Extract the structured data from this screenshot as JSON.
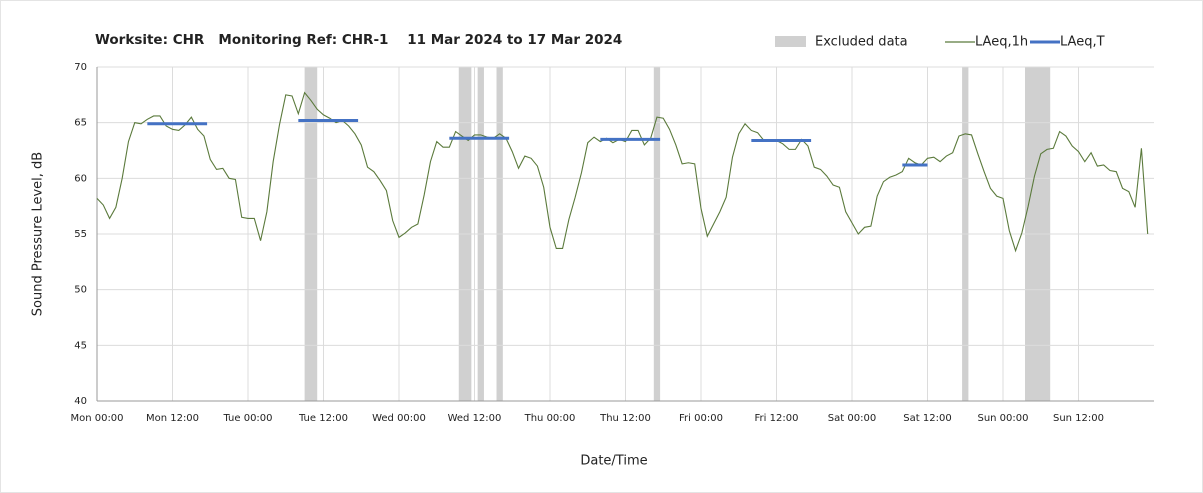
{
  "chart_data": {
    "type": "line",
    "title": "Worksite: CHR   Monitoring Ref: CHR-1    11 Mar 2024 to 17 Mar 2024",
    "x_label": "Date/Time",
    "y_label": "Sound Pressure Level, dB",
    "xlim": [
      0,
      168
    ],
    "ylim": [
      40,
      70
    ],
    "yticks": [
      40,
      45,
      50,
      55,
      60,
      65,
      70
    ],
    "xticks": [
      {
        "value": 0,
        "label": "Mon 00:00"
      },
      {
        "value": 12,
        "label": "Mon 12:00"
      },
      {
        "value": 24,
        "label": "Tue 00:00"
      },
      {
        "value": 36,
        "label": "Tue 12:00"
      },
      {
        "value": 48,
        "label": "Wed 00:00"
      },
      {
        "value": 60,
        "label": "Wed 12:00"
      },
      {
        "value": 72,
        "label": "Thu 00:00"
      },
      {
        "value": 84,
        "label": "Thu 12:00"
      },
      {
        "value": 96,
        "label": "Fri 00:00"
      },
      {
        "value": 108,
        "label": "Fri 12:00"
      },
      {
        "value": 120,
        "label": "Sat 00:00"
      },
      {
        "value": 132,
        "label": "Sat 12:00"
      },
      {
        "value": 144,
        "label": "Sun 00:00"
      },
      {
        "value": 156,
        "label": "Sun 12:00"
      }
    ],
    "grid": true,
    "excluded": {
      "name": "Excluded data",
      "color": "#d0d0d0",
      "ranges": [
        [
          33,
          35
        ],
        [
          57.5,
          59.5
        ],
        [
          60.5,
          61.5
        ],
        [
          63.5,
          64.5
        ],
        [
          88.5,
          89.5
        ],
        [
          137.5,
          138.5
        ],
        [
          147.5,
          151.5
        ]
      ]
    },
    "series": [
      {
        "name": "LAeq,1h",
        "color": "#5b7a3c",
        "x": [
          0,
          1,
          2,
          3,
          4,
          5,
          6,
          7,
          8,
          9,
          10,
          11,
          12,
          13,
          14,
          15,
          16,
          17,
          18,
          19,
          20,
          21,
          22,
          23,
          24,
          25,
          26,
          27,
          28,
          29,
          30,
          31,
          32,
          33,
          34,
          35,
          36,
          37,
          38,
          39,
          40,
          41,
          42,
          43,
          44,
          45,
          46,
          47,
          48,
          49,
          50,
          51,
          52,
          53,
          54,
          55,
          56,
          57,
          58,
          59,
          60,
          61,
          62,
          63,
          64,
          65,
          66,
          67,
          68,
          69,
          70,
          71,
          72,
          73,
          74,
          75,
          76,
          77,
          78,
          79,
          80,
          81,
          82,
          83,
          84,
          85,
          86,
          87,
          88,
          89,
          90,
          91,
          92,
          93,
          94,
          95,
          96,
          97,
          98,
          99,
          100,
          101,
          102,
          103,
          104,
          105,
          106,
          107,
          108,
          109,
          110,
          111,
          112,
          113,
          114,
          115,
          116,
          117,
          118,
          119,
          120,
          121,
          122,
          123,
          124,
          125,
          126,
          127,
          128,
          129,
          130,
          131,
          132,
          133,
          134,
          135,
          136,
          137,
          138,
          139,
          140,
          141,
          142,
          143,
          144,
          145,
          146,
          147,
          148,
          149,
          150,
          151,
          152,
          153,
          154,
          155,
          156,
          157,
          158,
          159,
          160,
          161,
          162,
          163,
          164,
          165,
          166,
          167
        ],
        "values": [
          58.2,
          57.6,
          56.4,
          57.4,
          60,
          63.3,
          65,
          64.9,
          65.3,
          65.6,
          65.6,
          64.7,
          64.4,
          64.3,
          64.8,
          65.5,
          64.4,
          63.8,
          61.7,
          60.8,
          60.9,
          60,
          59.9,
          56.5,
          56.4,
          56.4,
          54.4,
          57,
          61.5,
          64.8,
          67.5,
          67.4,
          65.8,
          67.7,
          67,
          66.2,
          65.7,
          65.4,
          65,
          65.2,
          64.7,
          64,
          63,
          61,
          60.6,
          59.8,
          58.9,
          56.2,
          54.7,
          55.1,
          55.6,
          55.9,
          58.5,
          61.5,
          63.3,
          62.8,
          62.8,
          64.2,
          63.8,
          63.4,
          63.9,
          63.9,
          63.7,
          63.6,
          64,
          63.6,
          62.4,
          60.9,
          62,
          61.8,
          61.1,
          59.2,
          55.6,
          53.7,
          53.7,
          56.3,
          58.3,
          60.5,
          63.2,
          63.7,
          63.3,
          63.6,
          63.2,
          63.5,
          63.3,
          64.3,
          64.3,
          63,
          63.6,
          65.5,
          65.4,
          64.4,
          63,
          61.3,
          61.4,
          61.3,
          57.3,
          54.8,
          55.9,
          57,
          58.3,
          61.9,
          64,
          64.9,
          64.3,
          64.1,
          63.4,
          63.4,
          63.4,
          63.1,
          62.6,
          62.6,
          63.5,
          62.9,
          61,
          60.8,
          60.2,
          59.4,
          59.2,
          57,
          56,
          55,
          55.6,
          55.7,
          58.4,
          59.7,
          60.1,
          60.3,
          60.6,
          61.8,
          61.4,
          61.2,
          61.8,
          61.9,
          61.5,
          62,
          62.3,
          63.8,
          64,
          63.9,
          62.2,
          60.6,
          59.1,
          58.4,
          58.2,
          55.3,
          53.5,
          55.1,
          57.5,
          60.2,
          62.2,
          62.6,
          62.7,
          64.2,
          63.8,
          62.9,
          62.4,
          61.5,
          62.3,
          61.1,
          61.2,
          60.7,
          60.6,
          59.1,
          58.8,
          57.4,
          62.7,
          55
        ]
      },
      {
        "name": "LAeq,T",
        "color": "#4472c4",
        "segments": [
          {
            "x": [
              8,
              17.5
            ],
            "value": 64.9
          },
          {
            "x": [
              32,
              41.5
            ],
            "value": 65.2
          },
          {
            "x": [
              56,
              65.5
            ],
            "value": 63.6
          },
          {
            "x": [
              80,
              89.5
            ],
            "value": 63.5
          },
          {
            "x": [
              104,
              113.5
            ],
            "value": 63.4
          },
          {
            "x": [
              128,
              132
            ],
            "value": 61.2
          }
        ]
      }
    ]
  }
}
